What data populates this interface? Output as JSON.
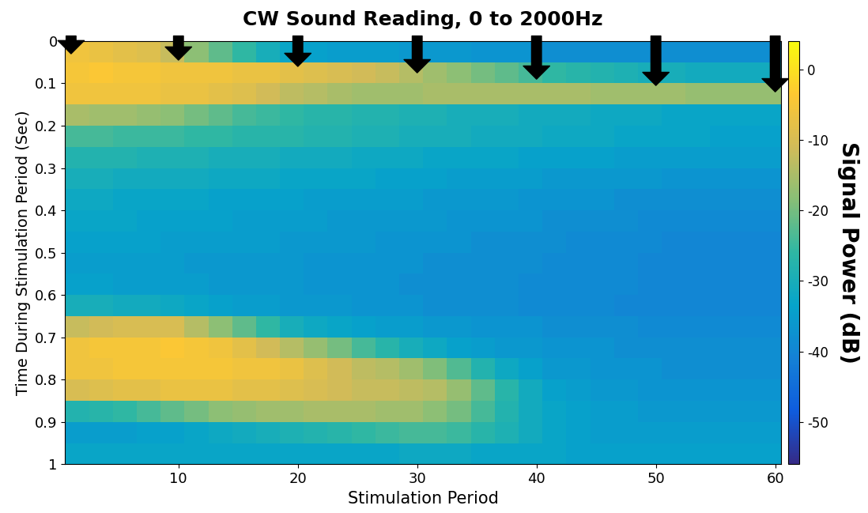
{
  "chart_data": {
    "type": "heatmap",
    "title": "CW Sound Reading, 0 to 2000Hz",
    "x_label": "Stimulation Period",
    "y_label": "Time During Stimulation Period (Sec)",
    "x": [
      1.5,
      3.5,
      5.5,
      7.5,
      9.5,
      11.5,
      13.5,
      15.5,
      17.5,
      19.5,
      21.5,
      23.5,
      25.5,
      27.5,
      29.5,
      31.5,
      33.5,
      35.5,
      37.5,
      39.5,
      41.5,
      43.5,
      45.5,
      47.5,
      49.5,
      51.5,
      53.5,
      55.5,
      57.5,
      59.5
    ],
    "y": [
      0.025,
      0.075,
      0.125,
      0.175,
      0.225,
      0.275,
      0.325,
      0.375,
      0.425,
      0.475,
      0.525,
      0.575,
      0.625,
      0.675,
      0.725,
      0.775,
      0.825,
      0.875,
      0.925,
      0.975
    ],
    "cells": [
      [
        -6,
        -7,
        -8,
        -9,
        -12,
        -18,
        -22,
        -26,
        -30,
        -33,
        -34,
        -35,
        -35,
        -35,
        -36,
        -36,
        -36,
        -37,
        -37,
        -37,
        -38,
        -38,
        -38,
        -38,
        -38,
        -38,
        -38,
        -38,
        -38,
        -38
      ],
      [
        -5,
        -4,
        -5,
        -5,
        -6,
        -6,
        -6,
        -7,
        -7,
        -8,
        -9,
        -10,
        -11,
        -12,
        -14,
        -16,
        -18,
        -20,
        -22,
        -24,
        -26,
        -27,
        -28,
        -29,
        -30,
        -30,
        -31,
        -31,
        -31,
        -31
      ],
      [
        -6,
        -6,
        -6,
        -6,
        -7,
        -7,
        -8,
        -9,
        -11,
        -13,
        -14,
        -15,
        -16,
        -16,
        -16,
        -15,
        -15,
        -15,
        -15,
        -15,
        -15,
        -15,
        -16,
        -16,
        -16,
        -16,
        -17,
        -17,
        -17,
        -17
      ],
      [
        -15,
        -16,
        -16,
        -17,
        -18,
        -20,
        -22,
        -24,
        -25,
        -26,
        -27,
        -27,
        -28,
        -28,
        -29,
        -29,
        -30,
        -30,
        -30,
        -31,
        -31,
        -31,
        -32,
        -32,
        -32,
        -33,
        -33,
        -33,
        -33,
        -33
      ],
      [
        -24,
        -24,
        -25,
        -25,
        -25,
        -26,
        -26,
        -27,
        -27,
        -27,
        -28,
        -28,
        -29,
        -29,
        -30,
        -30,
        -30,
        -31,
        -31,
        -31,
        -32,
        -32,
        -32,
        -33,
        -33,
        -33,
        -33,
        -34,
        -34,
        -34
      ],
      [
        -28,
        -28,
        -28,
        -29,
        -29,
        -29,
        -30,
        -30,
        -30,
        -31,
        -31,
        -31,
        -32,
        -32,
        -32,
        -33,
        -33,
        -33,
        -33,
        -34,
        -34,
        -34,
        -34,
        -35,
        -35,
        -35,
        -35,
        -35,
        -35,
        -35
      ],
      [
        -30,
        -30,
        -31,
        -31,
        -31,
        -31,
        -32,
        -32,
        -32,
        -33,
        -33,
        -33,
        -33,
        -34,
        -34,
        -34,
        -35,
        -35,
        -35,
        -35,
        -36,
        -36,
        -36,
        -36,
        -36,
        -37,
        -37,
        -37,
        -37,
        -37
      ],
      [
        -32,
        -32,
        -33,
        -33,
        -33,
        -33,
        -34,
        -34,
        -34,
        -34,
        -35,
        -35,
        -35,
        -35,
        -35,
        -36,
        -36,
        -36,
        -36,
        -37,
        -37,
        -37,
        -37,
        -38,
        -38,
        -38,
        -38,
        -38,
        -38,
        -38
      ],
      [
        -33,
        -33,
        -33,
        -34,
        -34,
        -34,
        -34,
        -35,
        -35,
        -35,
        -35,
        -36,
        -36,
        -36,
        -36,
        -36,
        -37,
        -37,
        -37,
        -37,
        -38,
        -38,
        -38,
        -38,
        -39,
        -39,
        -39,
        -39,
        -39,
        -39
      ],
      [
        -34,
        -34,
        -34,
        -34,
        -35,
        -35,
        -35,
        -35,
        -35,
        -36,
        -36,
        -36,
        -36,
        -37,
        -37,
        -37,
        -37,
        -38,
        -38,
        -38,
        -38,
        -39,
        -39,
        -39,
        -39,
        -40,
        -40,
        -40,
        -40,
        -40
      ],
      [
        -35,
        -35,
        -35,
        -35,
        -35,
        -36,
        -36,
        -36,
        -36,
        -36,
        -37,
        -37,
        -37,
        -37,
        -37,
        -38,
        -38,
        -38,
        -38,
        -38,
        -39,
        -39,
        -39,
        -39,
        -40,
        -40,
        -40,
        -40,
        -40,
        -40
      ],
      [
        -34,
        -34,
        -35,
        -35,
        -35,
        -35,
        -36,
        -36,
        -36,
        -36,
        -37,
        -37,
        -37,
        -37,
        -38,
        -38,
        -38,
        -38,
        -38,
        -39,
        -39,
        -39,
        -39,
        -39,
        -40,
        -40,
        -40,
        -40,
        -40,
        -40
      ],
      [
        -30,
        -30,
        -31,
        -31,
        -32,
        -33,
        -34,
        -35,
        -35,
        -36,
        -36,
        -36,
        -37,
        -37,
        -37,
        -38,
        -38,
        -38,
        -38,
        -39,
        -39,
        -39,
        -39,
        -40,
        -40,
        -40,
        -40,
        -40,
        -40,
        -40
      ],
      [
        -12,
        -11,
        -10,
        -10,
        -10,
        -14,
        -18,
        -22,
        -26,
        -30,
        -32,
        -33,
        -34,
        -35,
        -35,
        -36,
        -36,
        -37,
        -37,
        -37,
        -38,
        -38,
        -38,
        -38,
        -39,
        -39,
        -39,
        -39,
        -39,
        -39
      ],
      [
        -6,
        -5,
        -5,
        -5,
        -4,
        -5,
        -6,
        -8,
        -11,
        -14,
        -17,
        -20,
        -24,
        -27,
        -30,
        -32,
        -34,
        -35,
        -36,
        -36,
        -37,
        -37,
        -37,
        -38,
        -38,
        -38,
        -38,
        -38,
        -38,
        -38
      ],
      [
        -6,
        -6,
        -5,
        -5,
        -5,
        -5,
        -5,
        -6,
        -6,
        -7,
        -9,
        -11,
        -13,
        -14,
        -16,
        -19,
        -23,
        -28,
        -32,
        -34,
        -36,
        -36,
        -37,
        -37,
        -37,
        -38,
        -38,
        -38,
        -38,
        -38
      ],
      [
        -10,
        -9,
        -8,
        -8,
        -7,
        -7,
        -7,
        -8,
        -8,
        -9,
        -10,
        -11,
        -12,
        -12,
        -13,
        -14,
        -17,
        -22,
        -27,
        -31,
        -34,
        -35,
        -36,
        -36,
        -37,
        -37,
        -37,
        -37,
        -37,
        -37
      ],
      [
        -28,
        -27,
        -26,
        -24,
        -22,
        -20,
        -18,
        -17,
        -16,
        -16,
        -15,
        -15,
        -15,
        -16,
        -16,
        -18,
        -20,
        -24,
        -28,
        -31,
        -33,
        -34,
        -35,
        -35,
        -36,
        -36,
        -36,
        -36,
        -36,
        -36
      ],
      [
        -35,
        -35,
        -35,
        -34,
        -34,
        -33,
        -32,
        -31,
        -30,
        -29,
        -28,
        -27,
        -26,
        -25,
        -24,
        -24,
        -25,
        -27,
        -29,
        -31,
        -33,
        -34,
        -35,
        -35,
        -35,
        -35,
        -35,
        -35,
        -35,
        -35
      ],
      [
        -33,
        -33,
        -33,
        -33,
        -33,
        -33,
        -33,
        -33,
        -33,
        -33,
        -33,
        -33,
        -33,
        -33,
        -32,
        -32,
        -32,
        -33,
        -33,
        -33,
        -33,
        -34,
        -34,
        -34,
        -34,
        -34,
        -34,
        -34,
        -34,
        -34
      ]
    ],
    "xlim": [
      0.5,
      60.5
    ],
    "ylim": [
      1,
      0
    ],
    "xticks": [
      10,
      20,
      30,
      40,
      50,
      60
    ],
    "yticks": [
      0,
      0.1,
      0.2,
      0.3,
      0.4,
      0.5,
      0.6,
      0.7,
      0.8,
      0.9,
      1
    ],
    "colorbar_range": [
      -56,
      4
    ],
    "colorbar_ticks": [
      -50,
      -40,
      -30,
      -20,
      -10,
      0
    ],
    "colorbar_label": "Signal Power (dB)",
    "arrows": [
      1,
      10,
      20,
      30,
      40,
      50,
      60
    ]
  }
}
